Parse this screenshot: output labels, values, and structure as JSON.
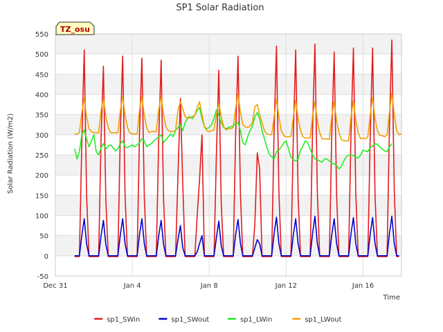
{
  "chart_data": {
    "type": "line",
    "title": "SP1 Solar Radiation",
    "site_label": "TZ_osu",
    "xlabel": "Time",
    "ylabel": "Solar Radiation (W/m2)",
    "ylim": [
      -50,
      550
    ],
    "yticks": [
      -50,
      0,
      50,
      100,
      150,
      200,
      250,
      300,
      350,
      400,
      450,
      500,
      550
    ],
    "xlim": [
      "2024-12-31",
      "2025-01-18"
    ],
    "xticks": [
      {
        "date": "2024-12-31",
        "label": "Dec 31"
      },
      {
        "date": "2025-01-04",
        "label": "Jan 4"
      },
      {
        "date": "2025-01-08",
        "label": "Jan 8"
      },
      {
        "date": "2025-01-12",
        "label": "Jan 12"
      },
      {
        "date": "2025-01-16",
        "label": "Jan 16"
      }
    ],
    "grid": true,
    "legend_position": "bottom",
    "time_step": "3 hours",
    "series": [
      {
        "name": "sp1_SWin",
        "color": "#e41a1c",
        "start": "2025-01-01T00:00",
        "values": [
          -2,
          -2,
          -2,
          280,
          510,
          150,
          -2,
          -2,
          -2,
          -2,
          -2,
          290,
          470,
          140,
          -2,
          -2,
          -2,
          -2,
          -2,
          300,
          495,
          150,
          -2,
          -2,
          -2,
          -2,
          -2,
          300,
          490,
          145,
          -2,
          -2,
          -2,
          -2,
          -2,
          290,
          485,
          140,
          -2,
          -2,
          -2,
          -2,
          -2,
          200,
          390,
          180,
          -2,
          -2,
          -2,
          -2,
          -2,
          100,
          190,
          300,
          -2,
          -2,
          -2,
          -2,
          -2,
          250,
          460,
          130,
          -2,
          -2,
          -2,
          -2,
          -2,
          300,
          495,
          150,
          -2,
          -2,
          -2,
          -2,
          -2,
          80,
          255,
          215,
          -2,
          -2,
          -2,
          -2,
          -2,
          310,
          520,
          160,
          -2,
          -2,
          -2,
          -2,
          -2,
          300,
          510,
          150,
          -2,
          -2,
          -2,
          -2,
          -2,
          310,
          525,
          155,
          -2,
          -2,
          -2,
          -2,
          -2,
          300,
          505,
          150,
          -2,
          -2,
          -2,
          -2,
          -2,
          305,
          515,
          155,
          -2,
          -2,
          -2,
          -2,
          -2,
          300,
          515,
          150,
          -2,
          -2,
          -2,
          -2,
          -2,
          320,
          535,
          160,
          -2,
          -2
        ]
      },
      {
        "name": "sp1_SWout",
        "color": "#0000cc",
        "start": "2025-01-01T00:00",
        "values": [
          0,
          0,
          0,
          50,
          92,
          30,
          0,
          0,
          0,
          0,
          0,
          50,
          88,
          28,
          0,
          0,
          0,
          0,
          0,
          52,
          92,
          30,
          0,
          0,
          0,
          0,
          0,
          52,
          92,
          30,
          0,
          0,
          0,
          0,
          0,
          50,
          88,
          28,
          0,
          0,
          0,
          0,
          0,
          40,
          75,
          20,
          0,
          0,
          0,
          0,
          0,
          10,
          30,
          50,
          0,
          0,
          0,
          0,
          0,
          45,
          86,
          25,
          0,
          0,
          0,
          0,
          0,
          52,
          90,
          30,
          0,
          0,
          0,
          0,
          0,
          20,
          40,
          30,
          0,
          0,
          0,
          0,
          0,
          55,
          96,
          30,
          0,
          0,
          0,
          0,
          0,
          52,
          92,
          30,
          0,
          0,
          0,
          0,
          0,
          55,
          98,
          30,
          0,
          0,
          0,
          0,
          0,
          52,
          92,
          30,
          0,
          0,
          0,
          0,
          0,
          55,
          95,
          30,
          0,
          0,
          0,
          0,
          0,
          55,
          95,
          30,
          0,
          0,
          0,
          0,
          0,
          55,
          98,
          30,
          0,
          0
        ]
      },
      {
        "name": "sp1_LWin",
        "color": "#22ee22",
        "start": "2025-01-01T00:00",
        "values": [
          265,
          240,
          258,
          300,
          312,
          290,
          270,
          285,
          300,
          258,
          250,
          268,
          278,
          265,
          272,
          275,
          268,
          260,
          265,
          278,
          285,
          270,
          268,
          272,
          275,
          270,
          275,
          280,
          290,
          285,
          270,
          275,
          278,
          285,
          290,
          295,
          300,
          280,
          288,
          295,
          302,
          295,
          310,
          318,
          325,
          310,
          330,
          342,
          345,
          340,
          348,
          360,
          368,
          340,
          320,
          315,
          318,
          325,
          340,
          362,
          350,
          330,
          318,
          315,
          318,
          320,
          322,
          328,
          330,
          310,
          280,
          275,
          295,
          310,
          322,
          345,
          355,
          340,
          310,
          290,
          268,
          252,
          245,
          240,
          258,
          262,
          270,
          280,
          285,
          265,
          245,
          238,
          235,
          240,
          262,
          272,
          285,
          280,
          265,
          250,
          240,
          238,
          235,
          232,
          240,
          240,
          235,
          230,
          228,
          224,
          215,
          222,
          235,
          245,
          250,
          250,
          248,
          245,
          242,
          250,
          262,
          260,
          258,
          268,
          272,
          278,
          276,
          270,
          265,
          260,
          258,
          270,
          278
        ]
      },
      {
        "name": "sp1_LWout",
        "color": "#f0a000",
        "start": "2025-01-01T00:00",
        "values": [
          302,
          302,
          305,
          355,
          390,
          345,
          315,
          308,
          305,
          305,
          305,
          360,
          390,
          345,
          318,
          305,
          305,
          305,
          305,
          360,
          395,
          348,
          318,
          305,
          302,
          302,
          302,
          360,
          395,
          348,
          318,
          305,
          308,
          308,
          308,
          362,
          395,
          350,
          320,
          310,
          308,
          308,
          310,
          360,
          382,
          365,
          345,
          340,
          342,
          345,
          348,
          368,
          382,
          350,
          320,
          310,
          308,
          310,
          312,
          350,
          378,
          345,
          320,
          312,
          315,
          315,
          318,
          365,
          400,
          355,
          325,
          320,
          318,
          322,
          330,
          370,
          375,
          350,
          330,
          310,
          302,
          300,
          300,
          345,
          388,
          345,
          310,
          298,
          295,
          295,
          296,
          345,
          386,
          340,
          310,
          295,
          292,
          292,
          292,
          345,
          382,
          335,
          305,
          290,
          290,
          290,
          288,
          345,
          382,
          335,
          305,
          288,
          285,
          285,
          285,
          345,
          385,
          335,
          305,
          290,
          292,
          290,
          295,
          350,
          392,
          340,
          310,
          298,
          298,
          295,
          300,
          355,
          405,
          350,
          310,
          300,
          302
        ]
      }
    ]
  }
}
